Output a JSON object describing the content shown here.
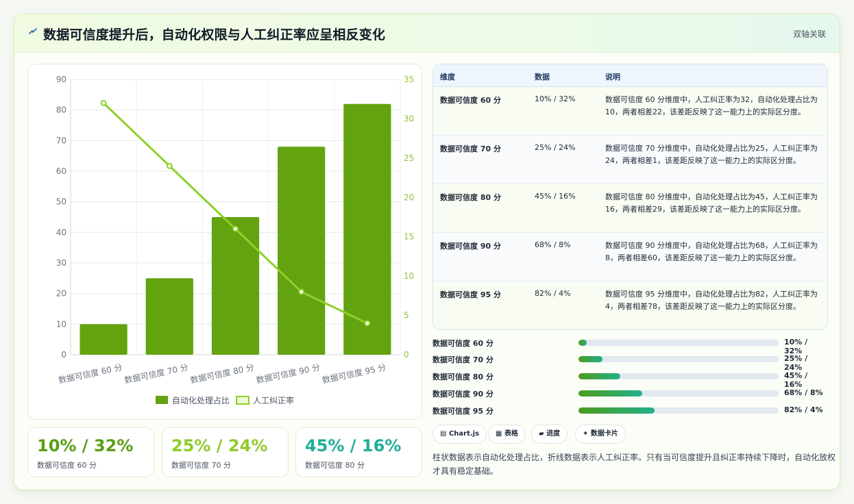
{
  "header": {
    "icon": "lightning-icon",
    "title": "数据可信度提升后，自动化权限与人工纠正率应呈相反变化",
    "tag": "双轴关联"
  },
  "chart_data": {
    "type": "bar",
    "categories": [
      "数据可信度 60 分",
      "数据可信度 70 分",
      "数据可信度 80 分",
      "数据可信度 90 分",
      "数据可信度 95 分"
    ],
    "series": [
      {
        "name": "自动化处理占比",
        "type": "bar",
        "axis": "left",
        "values": [
          10,
          25,
          45,
          68,
          82
        ],
        "color": "#62a30f"
      },
      {
        "name": "人工纠正率",
        "type": "line",
        "axis": "right",
        "values": [
          32,
          24,
          16,
          8,
          4
        ],
        "color": "#8fd02a"
      }
    ],
    "y_left": {
      "min": 0,
      "max": 90,
      "ticks": [
        0,
        10,
        20,
        30,
        40,
        50,
        60,
        70,
        80,
        90
      ]
    },
    "y_right": {
      "min": 0,
      "max": 35,
      "ticks": [
        0,
        5,
        10,
        15,
        20,
        25,
        30,
        35
      ]
    },
    "grid": true,
    "legend": "bottom"
  },
  "kpis": [
    {
      "value": "10% / 32%",
      "label": "数据可信度 60 分",
      "color": "#5a9e12"
    },
    {
      "value": "25% / 24%",
      "label": "数据可信度 70 分",
      "color": "#8fcb2c"
    },
    {
      "value": "45% / 16%",
      "label": "数据可信度 80 分",
      "color": "#1fae98"
    }
  ],
  "table": {
    "headers": [
      "维度",
      "数据",
      "说明"
    ],
    "rows": [
      {
        "dim": "数据可信度 60 分",
        "data": "10% / 32%",
        "desc": "数据可信度 60 分维度中，人工纠正率为32，自动化处理占比为10，两者相差22，该差距反映了这一能力上的实际区分度。"
      },
      {
        "dim": "数据可信度 70 分",
        "data": "25% / 24%",
        "desc": "数据可信度 70 分维度中，自动化处理占比为25，人工纠正率为24，两者相差1，该差距反映了这一能力上的实际区分度。"
      },
      {
        "dim": "数据可信度 80 分",
        "data": "45% / 16%",
        "desc": "数据可信度 80 分维度中，自动化处理占比为45，人工纠正率为16，两者相差29，该差距反映了这一能力上的实际区分度。"
      },
      {
        "dim": "数据可信度 90 分",
        "data": "68% / 8%",
        "desc": "数据可信度 90 分维度中，自动化处理占比为68，人工纠正率为8，两者相差60，该差距反映了这一能力上的实际区分度。"
      },
      {
        "dim": "数据可信度 95 分",
        "data": "82% / 4%",
        "desc": "数据可信度 95 分维度中，自动化处理占比为82，人工纠正率为4，两者相差78，该差距反映了这一能力上的实际区分度。"
      }
    ]
  },
  "progress": [
    {
      "label": "数据可信度 60 分",
      "value": "10% / 32%",
      "fraction": 0.04
    },
    {
      "label": "数据可信度 70 分",
      "value": "25% / 24%",
      "fraction": 0.12
    },
    {
      "label": "数据可信度 80 分",
      "value": "45% / 16%",
      "fraction": 0.21
    },
    {
      "label": "数据可信度 90 分",
      "value": "68% / 8%",
      "fraction": 0.32
    },
    {
      "label": "数据可信度 95 分",
      "value": "82% / 4%",
      "fraction": 0.38
    }
  ],
  "chips": [
    {
      "icon": "chart-icon",
      "glyph": "▤",
      "label": "Chart.js"
    },
    {
      "icon": "table-icon",
      "glyph": "▦",
      "label": "表格"
    },
    {
      "icon": "progress-icon",
      "glyph": "▰",
      "label": "进度"
    },
    {
      "icon": "sparkle-icon",
      "glyph": "✦",
      "label": "数据卡片"
    }
  ],
  "note": "柱状数据表示自动化处理占比，折线数据表示人工纠正率。只有当可信度提升且纠正率持续下降时，自动化放权才具有稳定基础。"
}
